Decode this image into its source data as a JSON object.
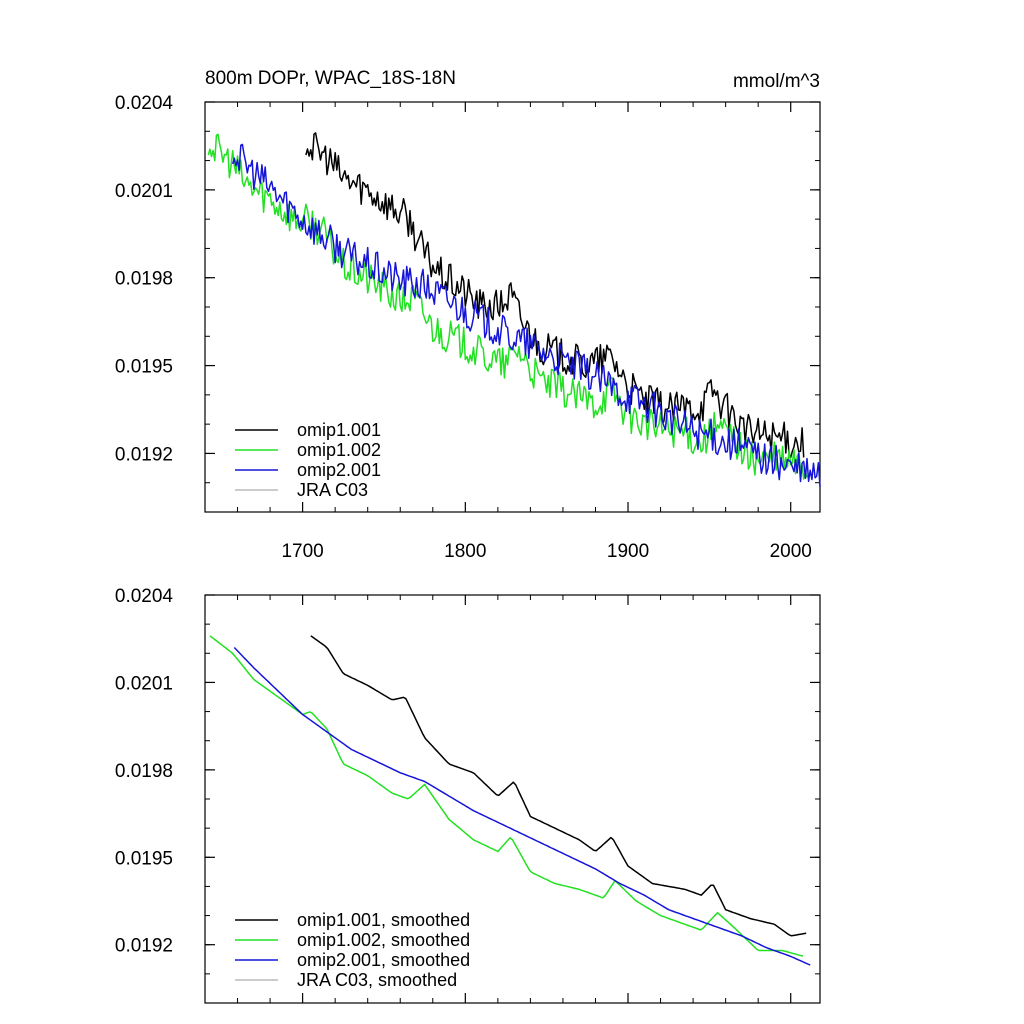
{
  "colors": {
    "omip1_001": "#000000",
    "omip1_002": "#22e022",
    "omip2_001": "#1515d8",
    "jra_c03": "#bbbbbb"
  },
  "chart_data": [
    {
      "type": "line",
      "title": "800m DOPr, WPAC_18S-18N",
      "units": "mmol/m^3",
      "xlim": [
        1640,
        2018
      ],
      "ylim": [
        0.019,
        0.0204
      ],
      "yticks": [
        0.0192,
        0.0195,
        0.0198,
        0.0201,
        0.0204
      ],
      "ytick_labels": [
        "0.0192",
        "0.0195",
        "0.0198",
        "0.0201",
        "0.0204"
      ],
      "xticks": [
        1700,
        1800,
        1900,
        2000
      ],
      "xtick_labels": [
        "1700",
        "1800",
        "1900",
        "2000"
      ],
      "legend": "bottom-left",
      "series": [
        {
          "name": "omip1.001",
          "color_key": "omip1_001",
          "x": [
            1702,
            1715,
            1725,
            1740,
            1755,
            1765,
            1775,
            1785,
            1800,
            1810,
            1820,
            1828,
            1835,
            1845,
            1860,
            1875,
            1890,
            1900,
            1910,
            1925,
            1945,
            1952,
            1960,
            1975,
            1990,
            2000,
            2008
          ],
          "y": [
            0.02026,
            0.02021,
            0.02014,
            0.0201,
            0.02004,
            0.02,
            0.01988,
            0.01981,
            0.01975,
            0.0197,
            0.0197,
            0.01974,
            0.01965,
            0.01957,
            0.01953,
            0.0195,
            0.01953,
            0.01943,
            0.01938,
            0.01935,
            0.01936,
            0.01942,
            0.01935,
            0.01927,
            0.01926,
            0.01924,
            0.01924
          ]
        },
        {
          "name": "omip1.002",
          "color_key": "omip1_002",
          "x": [
            1642,
            1657,
            1665,
            1680,
            1695,
            1705,
            1712,
            1725,
            1745,
            1760,
            1768,
            1780,
            1800,
            1815,
            1825,
            1832,
            1845,
            1865,
            1880,
            1890,
            1900,
            1915,
            1930,
            1945,
            1955,
            1965,
            1975,
            1990,
            2000,
            2010
          ],
          "y": [
            0.02026,
            0.02019,
            0.02012,
            0.02007,
            0.02,
            0.01999,
            0.01996,
            0.01984,
            0.01978,
            0.01972,
            0.01973,
            0.01963,
            0.01957,
            0.01952,
            0.0195,
            0.01956,
            0.01945,
            0.0194,
            0.01937,
            0.01942,
            0.01933,
            0.01929,
            0.01928,
            0.01924,
            0.01929,
            0.01925,
            0.01918,
            0.01918,
            0.01917,
            0.01915
          ]
        },
        {
          "name": "omip2.001",
          "color_key": "omip2_001",
          "x": [
            1657,
            1670,
            1685,
            1700,
            1715,
            1730,
            1745,
            1760,
            1775,
            1790,
            1805,
            1820,
            1835,
            1850,
            1865,
            1880,
            1895,
            1910,
            1925,
            1940,
            1955,
            1970,
            1985,
            2000,
            2018
          ],
          "y": [
            0.02023,
            0.02016,
            0.02008,
            0.02,
            0.01993,
            0.01987,
            0.01983,
            0.01979,
            0.01977,
            0.01972,
            0.01967,
            0.01962,
            0.01958,
            0.01954,
            0.0195,
            0.01946,
            0.01941,
            0.01937,
            0.01932,
            0.01928,
            0.01925,
            0.01922,
            0.01918,
            0.01915,
            0.01912
          ]
        },
        {
          "name": "JRA C03",
          "color_key": "jra_c03",
          "x": [],
          "y": []
        }
      ]
    },
    {
      "type": "line",
      "xlim": [
        1640,
        2018
      ],
      "ylim": [
        0.019,
        0.0204
      ],
      "yticks": [
        0.0192,
        0.0195,
        0.0198,
        0.0201,
        0.0204
      ],
      "ytick_labels": [
        "0.0192",
        "0.0195",
        "0.0198",
        "0.0201",
        "0.0204"
      ],
      "xticks": [
        1700,
        1800,
        1900,
        2000
      ],
      "xtick_labels": [],
      "legend": "bottom-left",
      "series": [
        {
          "name": "omip1.001, smoothed",
          "color_key": "omip1_001",
          "x": [
            1705,
            1715,
            1725,
            1740,
            1755,
            1763,
            1775,
            1790,
            1805,
            1820,
            1830,
            1840,
            1855,
            1870,
            1880,
            1890,
            1900,
            1915,
            1935,
            1945,
            1952,
            1960,
            1975,
            1990,
            2000,
            2010
          ],
          "y": [
            0.02026,
            0.02022,
            0.02013,
            0.02009,
            0.02004,
            0.02005,
            0.01991,
            0.01982,
            0.01979,
            0.01971,
            0.01976,
            0.01964,
            0.0196,
            0.01956,
            0.01952,
            0.01957,
            0.01947,
            0.01941,
            0.01939,
            0.01937,
            0.01941,
            0.01932,
            0.01929,
            0.01927,
            0.01923,
            0.01924
          ]
        },
        {
          "name": "omip1.002, smoothed",
          "color_key": "omip1_002",
          "x": [
            1643,
            1657,
            1670,
            1685,
            1700,
            1705,
            1715,
            1725,
            1740,
            1755,
            1765,
            1775,
            1790,
            1805,
            1820,
            1828,
            1840,
            1855,
            1870,
            1885,
            1892,
            1905,
            1920,
            1935,
            1945,
            1955,
            1965,
            1980,
            1995,
            2008
          ],
          "y": [
            0.02026,
            0.0202,
            0.02011,
            0.02005,
            0.01999,
            0.02,
            0.01994,
            0.01982,
            0.01978,
            0.01972,
            0.0197,
            0.01975,
            0.01963,
            0.01956,
            0.01952,
            0.01957,
            0.01945,
            0.01941,
            0.01939,
            0.01936,
            0.01942,
            0.01935,
            0.0193,
            0.01927,
            0.01925,
            0.01931,
            0.01926,
            0.01918,
            0.01918,
            0.01916
          ]
        },
        {
          "name": "omip2.001, smoothed",
          "color_key": "omip2_001",
          "x": [
            1658,
            1670,
            1685,
            1700,
            1715,
            1730,
            1745,
            1760,
            1775,
            1790,
            1805,
            1820,
            1835,
            1850,
            1865,
            1880,
            1895,
            1910,
            1925,
            1940,
            1955,
            1970,
            1985,
            2000,
            2012
          ],
          "y": [
            0.02022,
            0.02015,
            0.02007,
            0.01999,
            0.01993,
            0.01987,
            0.01983,
            0.01979,
            0.01976,
            0.01971,
            0.01966,
            0.01962,
            0.01958,
            0.01954,
            0.0195,
            0.01946,
            0.01941,
            0.01937,
            0.01932,
            0.01929,
            0.01926,
            0.01923,
            0.01919,
            0.01916,
            0.01913
          ]
        },
        {
          "name": "JRA C03, smoothed",
          "color_key": "jra_c03",
          "x": [],
          "y": []
        }
      ]
    }
  ]
}
